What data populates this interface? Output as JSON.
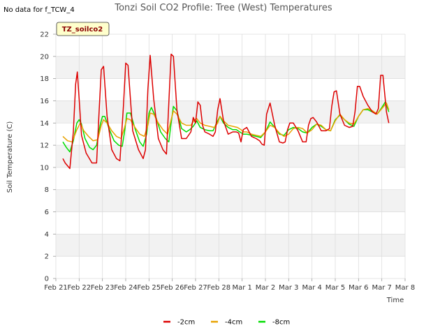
{
  "header": {
    "no_data_text": "No data for f_TCW_4",
    "site_badge": "TZ_soilco2"
  },
  "chart_data": {
    "type": "line",
    "title": "Tonzi Soil CO2 Profile: Tree (West) Temperatures",
    "xlabel": "Time",
    "ylabel": "Soil Temperature (C)",
    "ylim": [
      0,
      22
    ],
    "yticks": [
      0,
      2,
      4,
      6,
      8,
      10,
      12,
      14,
      16,
      18,
      20,
      22
    ],
    "xlim": [
      0,
      15
    ],
    "xticks": [
      {
        "value": 0,
        "label": "Feb 21"
      },
      {
        "value": 1,
        "label": "Feb 22"
      },
      {
        "value": 2,
        "label": "Feb 23"
      },
      {
        "value": 3,
        "label": "Feb 24"
      },
      {
        "value": 4,
        "label": "Feb 25"
      },
      {
        "value": 5,
        "label": "Feb 26"
      },
      {
        "value": 6,
        "label": "Feb 27"
      },
      {
        "value": 7,
        "label": "Feb 28"
      },
      {
        "value": 8,
        "label": "Mar 1"
      },
      {
        "value": 9,
        "label": "Mar 2"
      },
      {
        "value": 10,
        "label": "Mar 3"
      },
      {
        "value": 11,
        "label": "Mar 4"
      },
      {
        "value": 12,
        "label": "Mar 5"
      },
      {
        "value": 13,
        "label": "Mar 6"
      },
      {
        "value": 14,
        "label": "Mar 7"
      },
      {
        "value": 15,
        "label": "Mar 8"
      }
    ],
    "grid": true,
    "legend_position": "bottom",
    "series": [
      {
        "name": "-2cm",
        "color": "#dd0000",
        "x": [
          0.3,
          0.4,
          0.6,
          0.75,
          0.85,
          0.92,
          1.0,
          1.1,
          1.3,
          1.55,
          1.75,
          1.85,
          1.95,
          2.05,
          2.2,
          2.4,
          2.6,
          2.75,
          2.9,
          3.0,
          3.1,
          3.3,
          3.55,
          3.75,
          3.85,
          3.95,
          4.05,
          4.2,
          4.4,
          4.6,
          4.75,
          4.85,
          4.95,
          5.05,
          5.2,
          5.4,
          5.6,
          5.8,
          5.9,
          6.0,
          6.1,
          6.2,
          6.3,
          6.4,
          6.6,
          6.75,
          6.85,
          6.95,
          7.05,
          7.2,
          7.4,
          7.6,
          7.75,
          7.85,
          7.95,
          8.05,
          8.2,
          8.4,
          8.6,
          8.75,
          8.85,
          8.95,
          9.05,
          9.2,
          9.4,
          9.6,
          9.75,
          9.85,
          9.95,
          10.05,
          10.2,
          10.4,
          10.6,
          10.75,
          10.85,
          10.95,
          11.05,
          11.2,
          11.4,
          11.6,
          11.75,
          11.85,
          11.95,
          12.05,
          12.2,
          12.4,
          12.6,
          12.75,
          12.85,
          12.95,
          13.05,
          13.2,
          13.4,
          13.6,
          13.75,
          13.85,
          13.95,
          14.05,
          14.2,
          14.3
        ],
        "values": [
          10.8,
          10.4,
          9.9,
          13.2,
          17.5,
          18.6,
          16.2,
          12.9,
          11.3,
          10.4,
          10.4,
          14.8,
          18.8,
          19.1,
          14.6,
          11.6,
          10.8,
          10.6,
          15.5,
          19.4,
          19.2,
          13.3,
          11.6,
          10.8,
          11.6,
          17.0,
          20.1,
          16.2,
          12.6,
          11.6,
          11.2,
          15.8,
          20.2,
          20.0,
          15.2,
          12.6,
          12.6,
          13.2,
          14.5,
          14.0,
          15.9,
          15.6,
          13.8,
          13.2,
          13.0,
          12.8,
          13.2,
          15.2,
          16.2,
          14.2,
          13.0,
          13.2,
          13.2,
          13.1,
          12.3,
          13.4,
          13.6,
          12.8,
          12.6,
          12.4,
          12.1,
          12.0,
          14.8,
          15.8,
          13.8,
          12.3,
          12.2,
          12.3,
          13.4,
          14.0,
          14.0,
          13.3,
          12.3,
          12.3,
          13.8,
          14.4,
          14.5,
          14.1,
          13.3,
          13.3,
          13.5,
          15.5,
          16.8,
          16.9,
          14.8,
          13.8,
          13.6,
          13.7,
          15.0,
          17.3,
          17.3,
          16.4,
          15.6,
          15.0,
          14.8,
          15.3,
          18.3,
          18.3,
          15.0,
          14.0
        ]
      },
      {
        "name": "-4cm",
        "color": "#e8a200",
        "x": [
          0.3,
          0.5,
          0.7,
          0.9,
          1.05,
          1.2,
          1.4,
          1.6,
          1.8,
          1.95,
          2.05,
          2.2,
          2.4,
          2.6,
          2.8,
          2.95,
          3.05,
          3.2,
          3.4,
          3.6,
          3.8,
          3.95,
          4.05,
          4.2,
          4.4,
          4.6,
          4.8,
          4.95,
          5.05,
          5.2,
          5.4,
          5.6,
          5.8,
          5.95,
          6.05,
          6.2,
          6.4,
          6.6,
          6.8,
          6.95,
          7.05,
          7.2,
          7.4,
          7.6,
          7.8,
          7.95,
          8.05,
          8.2,
          8.4,
          8.6,
          8.8,
          9.0,
          9.2,
          9.4,
          9.6,
          9.8,
          10.0,
          10.2,
          10.4,
          10.6,
          10.8,
          11.0,
          11.2,
          11.4,
          11.6,
          11.8,
          12.0,
          12.2,
          12.4,
          12.6,
          12.8,
          13.0,
          13.2,
          13.4,
          13.6,
          13.8,
          14.0,
          14.2,
          14.3
        ],
        "values": [
          12.8,
          12.4,
          12.3,
          13.4,
          14.0,
          13.3,
          12.8,
          12.4,
          12.5,
          13.8,
          14.3,
          14.0,
          13.3,
          12.8,
          12.6,
          13.6,
          14.4,
          14.3,
          13.6,
          13.0,
          12.8,
          13.8,
          14.9,
          14.8,
          14.0,
          13.4,
          13.0,
          14.3,
          15.1,
          14.8,
          14.0,
          13.8,
          13.8,
          14.3,
          14.4,
          14.0,
          13.8,
          13.7,
          13.6,
          14.0,
          14.6,
          14.2,
          13.8,
          13.7,
          13.6,
          13.4,
          13.2,
          13.2,
          13.0,
          12.9,
          12.8,
          13.2,
          13.8,
          13.6,
          13.1,
          12.8,
          13.0,
          13.5,
          13.6,
          13.5,
          13.1,
          13.4,
          13.9,
          13.8,
          13.4,
          13.3,
          14.2,
          14.8,
          14.3,
          14.0,
          13.9,
          14.6,
          15.2,
          15.3,
          15.1,
          14.8,
          15.3,
          15.8,
          15.2
        ]
      },
      {
        "name": "-8cm",
        "color": "#00dd00",
        "x": [
          0.3,
          0.45,
          0.6,
          0.75,
          0.9,
          1.0,
          1.1,
          1.25,
          1.45,
          1.6,
          1.75,
          1.9,
          2.0,
          2.1,
          2.3,
          2.5,
          2.7,
          2.85,
          2.95,
          3.05,
          3.2,
          3.4,
          3.6,
          3.75,
          3.9,
          4.0,
          4.1,
          4.3,
          4.5,
          4.7,
          4.85,
          4.95,
          5.05,
          5.2,
          5.4,
          5.6,
          5.75,
          5.9,
          6.05,
          6.2,
          6.4,
          6.6,
          6.75,
          6.9,
          7.05,
          7.2,
          7.4,
          7.6,
          7.75,
          7.9,
          8.05,
          8.2,
          8.4,
          8.6,
          8.8,
          9.0,
          9.2,
          9.4,
          9.6,
          9.8,
          10.0,
          10.2,
          10.4,
          10.6,
          10.8,
          11.0,
          11.2,
          11.4,
          11.6,
          11.8,
          12.0,
          12.2,
          12.4,
          12.6,
          12.8,
          13.0,
          13.2,
          13.4,
          13.6,
          13.8,
          14.0,
          14.15,
          14.3
        ],
        "values": [
          12.3,
          11.8,
          11.4,
          12.4,
          14.0,
          14.3,
          13.9,
          12.6,
          11.8,
          11.6,
          12.0,
          13.8,
          14.6,
          14.6,
          13.4,
          12.4,
          12.0,
          11.9,
          13.2,
          14.9,
          14.9,
          13.5,
          12.3,
          11.9,
          13.0,
          14.9,
          15.4,
          14.5,
          13.2,
          12.6,
          12.3,
          14.0,
          15.5,
          15.1,
          13.5,
          13.2,
          13.4,
          13.7,
          14.2,
          13.6,
          13.4,
          13.3,
          13.3,
          14.0,
          14.6,
          14.0,
          13.6,
          13.4,
          13.4,
          13.2,
          13.0,
          13.0,
          12.9,
          12.8,
          12.7,
          13.2,
          14.1,
          13.6,
          13.0,
          12.9,
          13.4,
          13.6,
          13.5,
          13.2,
          13.1,
          13.6,
          13.9,
          13.7,
          13.4,
          13.3,
          14.3,
          14.7,
          14.3,
          13.9,
          13.7,
          14.6,
          15.2,
          15.2,
          15.0,
          14.8,
          15.4,
          15.9,
          15.0
        ]
      }
    ]
  }
}
